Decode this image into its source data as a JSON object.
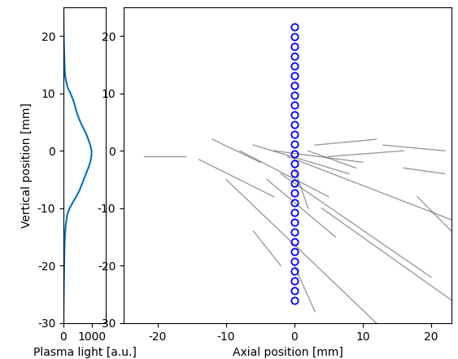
{
  "chart_data": [
    {
      "type": "line",
      "x_label": "Plasma light [a.u.]",
      "y_label": "Vertical position [mm]",
      "x": [
        0,
        5,
        10,
        18,
        25,
        35,
        50,
        80,
        140,
        220,
        330,
        450,
        560,
        640,
        720,
        800,
        880,
        950,
        990,
        1000,
        950,
        880,
        800,
        700,
        600,
        520,
        450,
        400,
        330,
        250,
        150,
        100,
        60,
        40,
        20,
        10,
        3,
        0
      ],
      "y": [
        -30,
        -27,
        -25,
        -22,
        -20,
        -17,
        -15,
        -13,
        -11,
        -10,
        -9,
        -8,
        -7,
        -6,
        -5,
        -4,
        -3,
        -2,
        -1,
        0,
        1,
        2,
        3,
        4,
        5,
        6,
        7,
        8,
        9,
        10,
        11,
        12,
        13,
        15,
        18,
        20,
        23,
        25
      ],
      "color": "#0072bd",
      "xlim": [
        0,
        1500
      ],
      "xticks": [
        0,
        1000
      ],
      "ylim": [
        -30,
        25
      ],
      "yticks": [
        -30,
        -20,
        -10,
        0,
        10,
        20
      ]
    },
    {
      "type": "scatter",
      "x_label": "Axial position [mm]",
      "x": [
        0,
        0,
        0,
        0,
        0,
        0,
        0,
        0,
        0,
        0,
        0,
        0,
        0,
        0,
        0,
        0,
        0,
        0,
        0,
        0,
        0,
        0,
        0,
        0,
        0,
        0,
        0,
        0,
        0
      ],
      "y": [
        -26.0,
        -24.3,
        -22.6,
        -20.9,
        -19.2,
        -17.5,
        -15.8,
        -14.1,
        -12.4,
        -10.7,
        -9.0,
        -7.3,
        -5.6,
        -3.9,
        -2.2,
        -0.5,
        1.2,
        2.9,
        4.6,
        6.3,
        8.0,
        9.7,
        11.4,
        13.1,
        14.8,
        16.5,
        18.2,
        19.9,
        21.6
      ],
      "color": "#0000ff",
      "marker": "o",
      "tracks": [
        [
          -22,
          -1,
          -16,
          -1
        ],
        [
          -14,
          -1.5,
          -3,
          -8
        ],
        [
          -12,
          2,
          -5,
          -2
        ],
        [
          -8,
          0,
          5,
          -8
        ],
        [
          -6,
          1,
          8,
          -4
        ],
        [
          -3,
          0,
          10,
          -2
        ],
        [
          -1,
          -1,
          23,
          -12
        ],
        [
          -2,
          -4,
          20,
          -22
        ],
        [
          -10,
          -5,
          12,
          -30
        ],
        [
          -4,
          -5,
          6,
          -15
        ],
        [
          0,
          -3,
          2,
          -10
        ],
        [
          2,
          0,
          9,
          -3
        ],
        [
          3,
          1,
          12,
          2
        ],
        [
          5,
          -1,
          16,
          0
        ],
        [
          13,
          1,
          22,
          0
        ],
        [
          16,
          -3,
          22,
          -4
        ],
        [
          18,
          -8,
          23,
          -14
        ],
        [
          -6,
          -14,
          -2,
          -20
        ],
        [
          0,
          -20,
          3,
          -28
        ],
        [
          4,
          -10,
          23,
          -26
        ]
      ],
      "xlim": [
        -25,
        23
      ],
      "xticks": [
        -20,
        -10,
        0,
        10,
        20
      ],
      "ylim": [
        -30,
        25
      ],
      "yticks": [
        -30,
        -20,
        -10,
        0,
        10,
        20
      ]
    }
  ]
}
